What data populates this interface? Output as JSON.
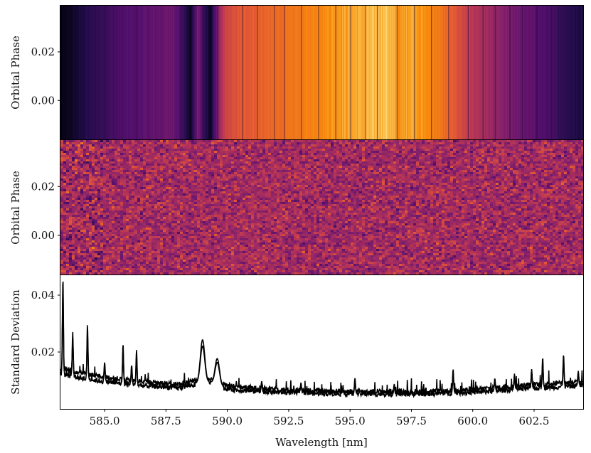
{
  "chart_data": [
    {
      "type": "heatmap",
      "panel": "raw-spectra",
      "ylabel": "Orbital Phase",
      "ytick_labels": [
        "0.02",
        "0.00"
      ],
      "yticks": [
        0.02,
        0.0
      ],
      "ylim": [
        -0.016,
        0.039
      ],
      "xlim": [
        583.2,
        604.5
      ],
      "colormap": "inferno",
      "profile": {
        "wavelength": [
          583.2,
          583.6,
          584.2,
          585.0,
          586.0,
          587.0,
          587.8,
          588.2,
          588.5,
          588.8,
          589.0,
          589.3,
          589.6,
          589.9,
          590.5,
          591.5,
          592.5,
          593.5,
          594.5,
          595.5,
          596.5,
          597.0,
          597.5,
          598.5,
          599.0,
          599.5,
          600.0,
          601.0,
          602.0,
          603.0,
          603.8,
          604.5
        ],
        "normalized_flux": [
          0.02,
          0.06,
          0.14,
          0.22,
          0.28,
          0.32,
          0.36,
          0.22,
          0.05,
          0.4,
          0.24,
          0.05,
          0.4,
          0.62,
          0.7,
          0.74,
          0.78,
          0.84,
          0.88,
          0.9,
          0.93,
          0.86,
          0.9,
          0.82,
          0.74,
          0.66,
          0.56,
          0.44,
          0.34,
          0.26,
          0.18,
          0.12
        ]
      },
      "absorption_lines_nm": [
        584.1,
        585.0,
        586.3,
        588.1,
        588.99,
        589.59,
        590.6,
        591.2,
        591.9,
        592.3,
        593.0,
        593.7,
        594.4,
        595.0,
        595.6,
        596.1,
        596.9,
        597.6,
        598.3,
        599.0,
        599.8,
        600.4,
        600.9,
        601.5,
        602.0,
        602.6,
        603.2
      ]
    },
    {
      "type": "heatmap",
      "panel": "residuals",
      "ylabel": "Orbital Phase",
      "ytick_labels": [
        "0.02",
        "0.00"
      ],
      "yticks": [
        0.02,
        0.0
      ],
      "ylim": [
        -0.016,
        0.039
      ],
      "xlim": [
        583.2,
        604.5
      ],
      "colormap": "inferno",
      "description_values": {
        "mean_level": 0.5,
        "noise_sigma": 0.12
      }
    },
    {
      "type": "line",
      "panel": "standard-deviation",
      "xlabel": "Wavelength [nm]",
      "ylabel": "Standard Deviation",
      "xlim": [
        583.2,
        604.5
      ],
      "ylim": [
        0.0,
        0.047
      ],
      "xticks": [
        585.0,
        587.5,
        590.0,
        592.5,
        595.0,
        597.5,
        600.0,
        602.5
      ],
      "xtick_labels": [
        "585.0",
        "587.5",
        "590.0",
        "592.5",
        "595.0",
        "597.5",
        "600.0",
        "602.5"
      ],
      "yticks": [
        0.02,
        0.04
      ],
      "ytick_labels": [
        "0.02",
        "0.04"
      ],
      "baseline": {
        "x": [
          583.2,
          584.0,
          585.0,
          586.0,
          587.0,
          588.0,
          588.7,
          589.3,
          590.0,
          591.0,
          592.0,
          593.0,
          594.0,
          595.0,
          596.0,
          597.0,
          598.0,
          599.0,
          600.0,
          601.0,
          602.0,
          603.0,
          604.5
        ],
        "y": [
          0.013,
          0.0115,
          0.01,
          0.009,
          0.0082,
          0.0076,
          0.009,
          0.0095,
          0.0072,
          0.0065,
          0.006,
          0.0057,
          0.0055,
          0.0054,
          0.0053,
          0.0053,
          0.0054,
          0.0056,
          0.006,
          0.0066,
          0.0072,
          0.0078,
          0.0085
        ]
      },
      "spikes": {
        "x": [
          583.3,
          583.7,
          584.3,
          585.0,
          585.75,
          586.1,
          586.3,
          588.99,
          589.59,
          591.4,
          593.0,
          595.2,
          596.8,
          599.2,
          600.9,
          601.7,
          602.4,
          602.85,
          603.7,
          604.3
        ],
        "y": [
          0.044,
          0.026,
          0.0285,
          0.016,
          0.022,
          0.015,
          0.02,
          0.0232,
          0.017,
          0.0095,
          0.009,
          0.0105,
          0.0085,
          0.0135,
          0.0105,
          0.012,
          0.0135,
          0.0175,
          0.0185,
          0.013
        ]
      }
    }
  ]
}
